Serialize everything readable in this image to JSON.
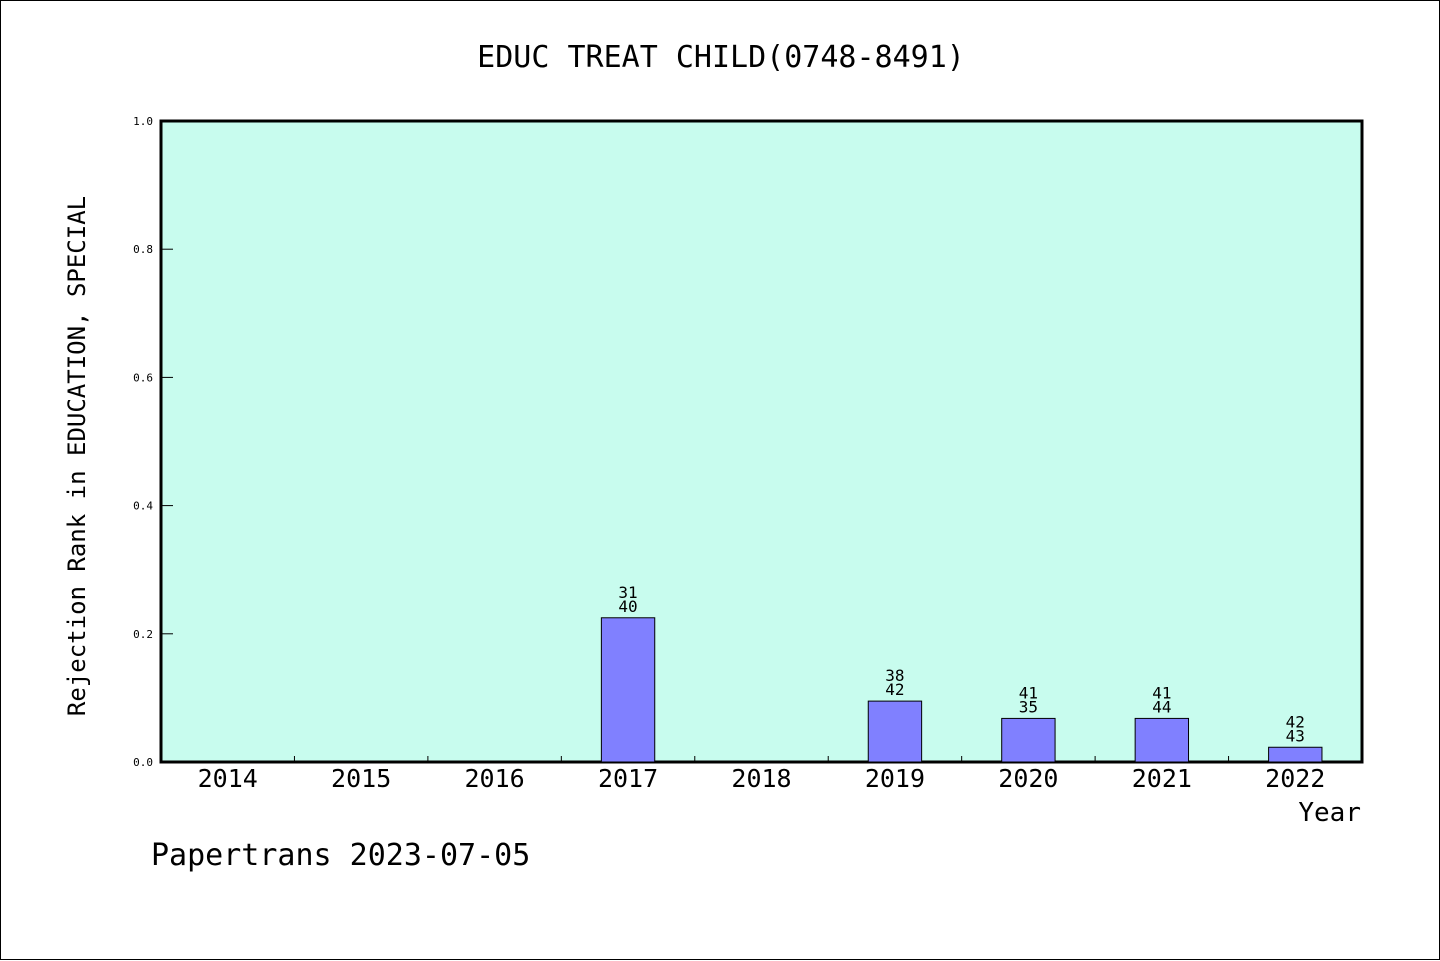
{
  "footer": {
    "credit": "Papertrans 2023-07-05"
  },
  "colors": {
    "plot_background": "#c8fcee",
    "bar_fill": "#8080ff",
    "bar_stroke": "#000000",
    "axis": "#000000"
  },
  "chart_data": {
    "type": "bar",
    "title": "EDUC TREAT CHILD(0748-8491)",
    "xlabel": "Year",
    "ylabel": "Rejection Rank in EDUCATION, SPECIAL",
    "ylim": [
      0,
      1.0
    ],
    "yticks": [
      "0.0",
      "0.2",
      "0.4",
      "0.6",
      "0.8",
      "1.0"
    ],
    "grid": false,
    "categories": [
      "2014",
      "2015",
      "2016",
      "2017",
      "2018",
      "2019",
      "2020",
      "2021",
      "2022"
    ],
    "values": [
      null,
      null,
      null,
      0.225,
      null,
      0.095,
      0.068,
      0.068,
      0.023
    ],
    "labels": [
      null,
      null,
      null,
      [
        "31",
        "40"
      ],
      null,
      [
        "38",
        "42"
      ],
      [
        "41",
        "35"
      ],
      [
        "41",
        "44"
      ],
      [
        "42",
        "43"
      ]
    ]
  }
}
